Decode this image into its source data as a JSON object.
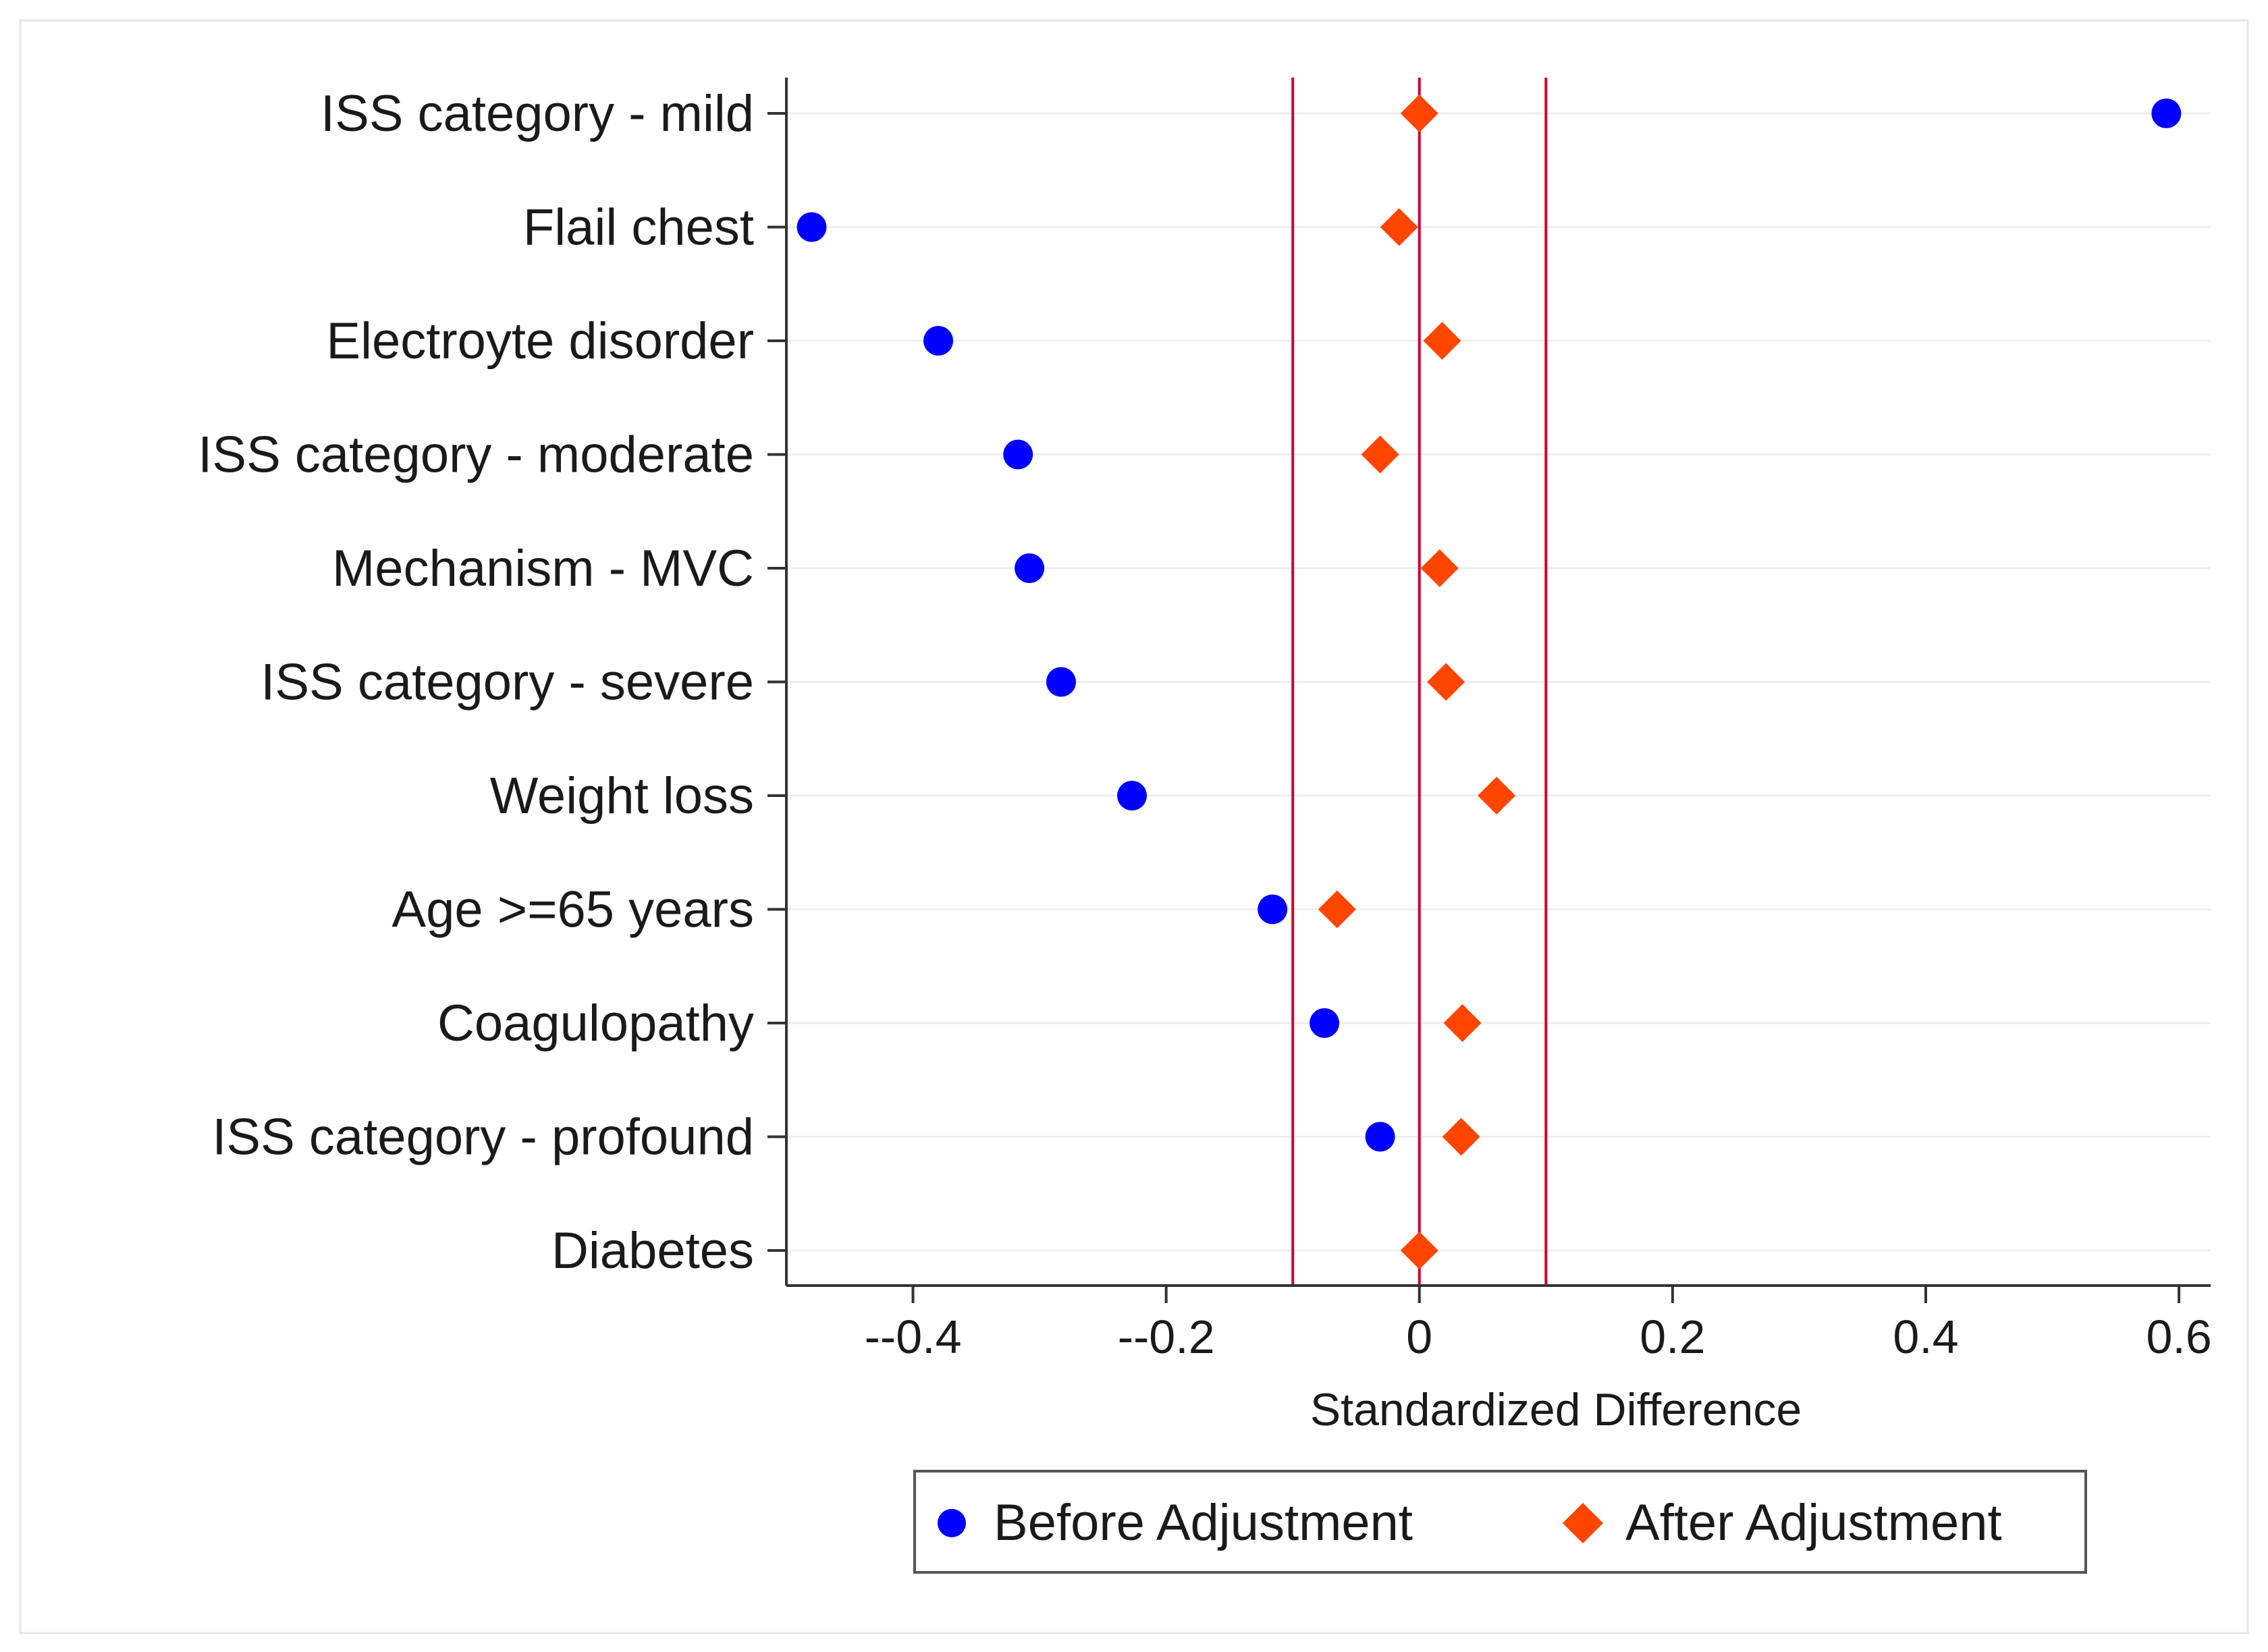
{
  "chart_data": {
    "type": "scatter",
    "orientation": "horizontal-dot",
    "categories": [
      "ISS category - mild",
      "Flail chest",
      "Electroyte disorder",
      "ISS category - moderate",
      "Mechanism - MVC",
      "ISS category - severe",
      "Weight loss",
      "Age >=65 years",
      "Coagulopathy",
      "ISS category - profound",
      "Diabetes"
    ],
    "series": [
      {
        "name": "Before Adjustment",
        "marker": "circle",
        "color": "#0000ff",
        "values": [
          0.59,
          -0.48,
          -0.38,
          -0.317,
          -0.308,
          -0.283,
          -0.227,
          -0.116,
          -0.075,
          -0.031,
          null
        ]
      },
      {
        "name": "After Adjustment",
        "marker": "diamond",
        "color": "#ff4500",
        "values": [
          0.0,
          -0.016,
          0.018,
          -0.031,
          0.016,
          0.021,
          0.061,
          -0.065,
          0.034,
          0.033,
          0.0
        ]
      }
    ],
    "xlabel": "Standardized Difference",
    "xlim": [
      -0.5,
      0.625
    ],
    "xticks": [
      -0.4,
      -0.2,
      0,
      0.2,
      0.4,
      0.6
    ],
    "xtick_labels": [
      "--0.4",
      "--0.2",
      "0",
      "0.2",
      "0.4",
      "0.6"
    ],
    "reference_lines": [
      -0.1,
      0,
      0.1
    ],
    "reference_line_color": "#cc0033",
    "grid": "horizontal",
    "legend": "bottom-center"
  }
}
